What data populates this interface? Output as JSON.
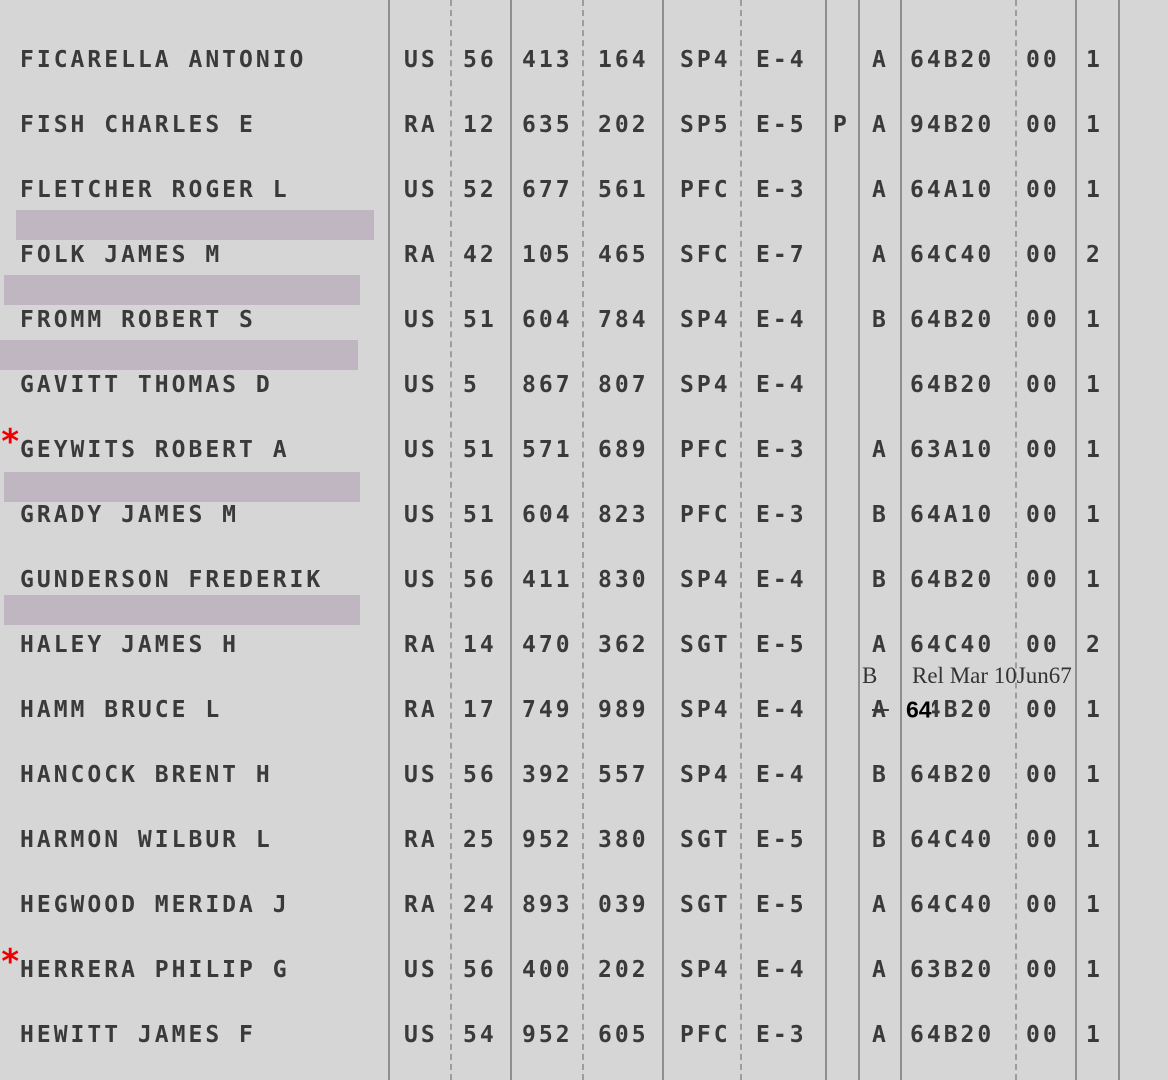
{
  "rows": [
    {
      "name": "FICARELLA ANTONIO",
      "component": "US",
      "serial_1": "56",
      "serial_2": "413",
      "serial_3": "164",
      "rank": "SP4",
      "grade": "E-4",
      "code": "A",
      "mos": "64B20",
      "suffix": "00",
      "count": "1"
    },
    {
      "name": "FISH CHARLES E",
      "component": "RA",
      "serial_1": "12",
      "serial_2": "635",
      "serial_3": "202",
      "rank": "SP5",
      "grade": "E-5",
      "flag": "P",
      "code": "A",
      "mos": "94B20",
      "suffix": "00",
      "count": "1"
    },
    {
      "name": "FLETCHER ROGER L",
      "component": "US",
      "serial_1": "52",
      "serial_2": "677",
      "serial_3": "561",
      "rank": "PFC",
      "grade": "E-3",
      "code": "A",
      "mos": "64A10",
      "suffix": "00",
      "count": "1"
    },
    {
      "name": "FOLK JAMES M",
      "component": "RA",
      "serial_1": "42",
      "serial_2": "105",
      "serial_3": "465",
      "rank": "SFC",
      "grade": "E-7",
      "code": "A",
      "mos": "64C40",
      "suffix": "00",
      "count": "2"
    },
    {
      "name": "FROMM ROBERT S",
      "component": "US",
      "serial_1": "51",
      "serial_2": "604",
      "serial_3": "784",
      "rank": "SP4",
      "grade": "E-4",
      "code": "B",
      "mos": "64B20",
      "suffix": "00",
      "count": "1"
    },
    {
      "name": "GAVITT THOMAS D",
      "component": "US",
      "serial_1": "5",
      "serial_2": "867",
      "serial_3": "807",
      "rank": "SP4",
      "grade": "E-4",
      "mos": "64B20",
      "suffix": "00",
      "count": "1"
    },
    {
      "marker": "*",
      "name": "GEYWITS ROBERT A",
      "component": "US",
      "serial_1": "51",
      "serial_2": "571",
      "serial_3": "689",
      "rank": "PFC",
      "grade": "E-3",
      "code": "A",
      "mos": "63A10",
      "suffix": "00",
      "count": "1"
    },
    {
      "name": "GRADY JAMES M",
      "component": "US",
      "serial_1": "51",
      "serial_2": "604",
      "serial_3": "823",
      "rank": "PFC",
      "grade": "E-3",
      "code": "B",
      "mos": "64A10",
      "suffix": "00",
      "count": "1"
    },
    {
      "name": "GUNDERSON FREDERIK",
      "component": "US",
      "serial_1": "56",
      "serial_2": "411",
      "serial_3": "830",
      "rank": "SP4",
      "grade": "E-4",
      "code": "B",
      "mos": "64B20",
      "suffix": "00",
      "count": "1"
    },
    {
      "name": "HALEY JAMES H",
      "component": "RA",
      "serial_1": "14",
      "serial_2": "470",
      "serial_3": "362",
      "rank": "SGT",
      "grade": "E-5",
      "code": "A",
      "mos": "64C40",
      "suffix": "00",
      "count": "2"
    },
    {
      "name": "HAMM BRUCE L",
      "component": "RA",
      "serial_1": "17",
      "serial_2": "749",
      "serial_3": "989",
      "rank": "SP4",
      "grade": "E-4",
      "code": "A",
      "code_correction": "B",
      "note": "Rel Mar 10Jun67",
      "mos": "64B20",
      "mos_correction": "64",
      "suffix": "00",
      "count": "1"
    },
    {
      "name": "HANCOCK BRENT H",
      "component": "US",
      "serial_1": "56",
      "serial_2": "392",
      "serial_3": "557",
      "rank": "SP4",
      "grade": "E-4",
      "code": "B",
      "mos": "64B20",
      "suffix": "00",
      "count": "1"
    },
    {
      "name": "HARMON WILBUR L",
      "component": "RA",
      "serial_1": "25",
      "serial_2": "952",
      "serial_3": "380",
      "rank": "SGT",
      "grade": "E-5",
      "code": "B",
      "mos": "64C40",
      "suffix": "00",
      "count": "1"
    },
    {
      "name": "HEGWOOD MERIDA J",
      "component": "RA",
      "serial_1": "24",
      "serial_2": "893",
      "serial_3": "039",
      "rank": "SGT",
      "grade": "E-5",
      "code": "A",
      "mos": "64C40",
      "suffix": "00",
      "count": "1"
    },
    {
      "marker": "*",
      "name": "HERRERA PHILIP G",
      "component": "US",
      "serial_1": "56",
      "serial_2": "400",
      "serial_3": "202",
      "rank": "SP4",
      "grade": "E-4",
      "code": "A",
      "mos": "63B20",
      "suffix": "00",
      "count": "1"
    },
    {
      "name": "HEWITT JAMES F",
      "component": "US",
      "serial_1": "54",
      "serial_2": "952",
      "serial_3": "605",
      "rank": "PFC",
      "grade": "E-3",
      "code": "A",
      "mos": "64B20",
      "suffix": "00",
      "count": "1"
    }
  ]
}
